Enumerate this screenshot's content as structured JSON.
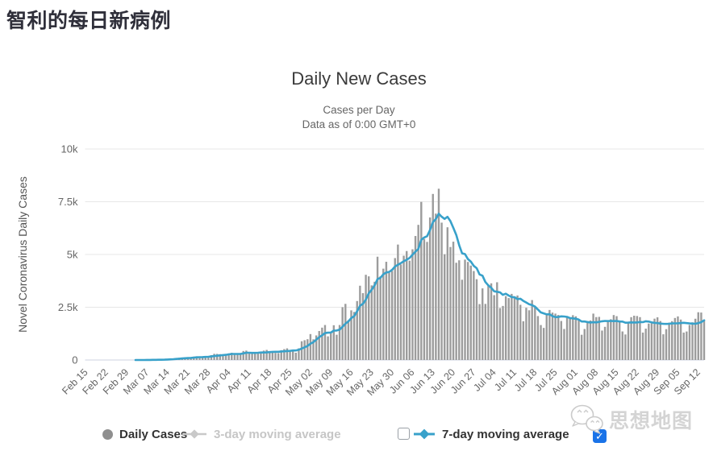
{
  "page": {
    "title": "智利的每日新病例",
    "watermark": "思想地图"
  },
  "chart": {
    "title": "Daily New Cases",
    "subtitle1": "Cases per Day",
    "subtitle2": "Data as of 0:00 GMT+0",
    "y_axis_title": "Novel Coronavirus Daily Cases"
  },
  "legend": {
    "daily_cases": "Daily Cases",
    "ma3": "3-day moving average",
    "ma7": "7-day moving average",
    "left_checkbox_checked": false,
    "right_checkbox_checked": true,
    "check_glyph": "✓"
  },
  "colors": {
    "bar": "#9c9c9c",
    "line": "#38a1ca",
    "grid": "#e7e7e7",
    "axis_line": "#dde2ec",
    "tick_text": "#666666",
    "checkbox_blue": "#1a73e8",
    "disabled_legend": "#c6c6c6"
  },
  "chart_data": {
    "type": "bar",
    "title": "Daily New Cases",
    "subtitle": "Cases per Day — Data as of 0:00 GMT+0",
    "ylabel": "Novel Coronavirus Daily Cases",
    "ylim": [
      0,
      10000
    ],
    "y_tick_values": [
      0,
      2500,
      5000,
      7500,
      10000
    ],
    "y_tick_labels": [
      "0",
      "2.5k",
      "5k",
      "7.5k",
      "10k"
    ],
    "x_start": "Feb 15",
    "x_end": "Sep 14",
    "x_cadence": "daily",
    "x_tick_labels": [
      "Feb 15",
      "Feb 22",
      "Feb 29",
      "Mar 07",
      "Mar 14",
      "Mar 21",
      "Mar 28",
      "Apr 04",
      "Apr 11",
      "Apr 18",
      "Apr 25",
      "May 02",
      "May 09",
      "May 16",
      "May 23",
      "May 30",
      "Jun 06",
      "Jun 13",
      "Jun 20",
      "Jun 27",
      "Jul 04",
      "Jul 11",
      "Jul 18",
      "Jul 25",
      "Aug 01",
      "Aug 08",
      "Aug 15",
      "Aug 22",
      "Aug 29",
      "Sep 05",
      "Sep 12"
    ],
    "x_tick_day_offsets": [
      0,
      7,
      14,
      21,
      28,
      35,
      42,
      49,
      56,
      63,
      70,
      77,
      84,
      91,
      98,
      105,
      112,
      119,
      126,
      133,
      140,
      147,
      154,
      161,
      168,
      175,
      182,
      189,
      196,
      203,
      210
    ],
    "legend_position": "bottom",
    "grid": "horizontal",
    "series": [
      {
        "name": "Daily Cases",
        "type": "bar",
        "values": [
          0,
          0,
          0,
          0,
          0,
          0,
          0,
          0,
          0,
          0,
          0,
          0,
          0,
          0,
          0,
          0,
          0,
          1,
          2,
          3,
          4,
          8,
          10,
          13,
          14,
          20,
          23,
          32,
          46,
          61,
          74,
          81,
          103,
          108,
          112,
          103,
          114,
          161,
          176,
          164,
          142,
          156,
          149,
          230,
          293,
          289,
          277,
          238,
          240,
          310,
          344,
          301,
          281,
          291,
          426,
          445,
          312,
          296,
          312,
          325,
          356,
          445,
          478,
          419,
          358,
          336,
          325,
          464,
          516,
          552,
          472,
          482,
          345,
          552,
          888,
          938,
          985,
          1228,
          980,
          1165,
          1373,
          1533,
          1658,
          1120,
          1254,
          1647,
          1197,
          1658,
          2502,
          2660,
          1886,
          2353,
          2278,
          2794,
          3520,
          3168,
          4038,
          3964,
          3536,
          3709,
          4895,
          3964,
          4328,
          4654,
          4120,
          4220,
          4830,
          5471,
          4527,
          4942,
          5164,
          4707,
          5246,
          5876,
          6405,
          7494,
          5737,
          5596,
          6754,
          7870,
          6938,
          8117,
          6509,
          5013,
          6290,
          5355,
          5607,
          4608,
          4725,
          3804,
          4757,
          4648,
          4475,
          4216,
          3829,
          2650,
          3394,
          2658,
          3548,
          3633,
          3072,
          3685,
          2462,
          2562,
          3025,
          2935,
          3133,
          3012,
          3058,
          2616,
          1836,
          2475,
          2356,
          2840,
          2545,
          2082,
          1656,
          1521,
          2152,
          2371,
          2245,
          2198,
          2133,
          1849,
          1469,
          2036,
          1996,
          2123,
          2070,
          1877,
          1195,
          1469,
          1843,
          1874,
          2198,
          2033,
          2044,
          1395,
          1572,
          1797,
          1931,
          2130,
          2077,
          1873,
          1353,
          1210,
          1812,
          2029,
          2099,
          2085,
          2031,
          1300,
          1486,
          1727,
          1739,
          1959,
          2022,
          1847,
          1218,
          1462,
          1771,
          1840,
          1992,
          2066,
          1916,
          1300,
          1351,
          1662,
          1786,
          1955,
          2263,
          2249,
          1902
        ]
      },
      {
        "name": "7-day moving average",
        "type": "line",
        "derived": "trailing 7-day mean of Daily Cases",
        "peak_value_approx": 7000,
        "peak_date_approx": "Jun 15"
      },
      {
        "name": "3-day moving average",
        "type": "line",
        "visible": false
      }
    ]
  }
}
